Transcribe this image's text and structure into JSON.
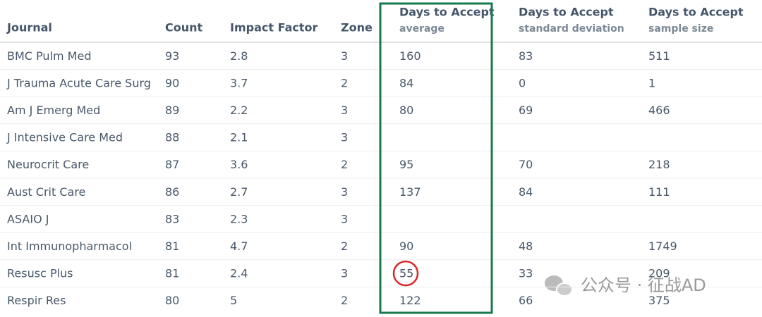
{
  "table": {
    "columns": [
      {
        "title": "Journal"
      },
      {
        "title": "Count"
      },
      {
        "title": "Impact Factor"
      },
      {
        "title": "Zone"
      },
      {
        "title": "Days to Accept",
        "subtitle": "average"
      },
      {
        "title": "Days to Accept",
        "subtitle": "standard deviation"
      },
      {
        "title": "Days to Accept",
        "subtitle": "sample size"
      }
    ],
    "rows": [
      [
        "BMC Pulm Med",
        "93",
        "2.8",
        "3",
        "160",
        "83",
        "511"
      ],
      [
        "J Trauma Acute Care Surg",
        "90",
        "3.7",
        "2",
        "84",
        "0",
        "1"
      ],
      [
        "Am J Emerg Med",
        "89",
        "2.2",
        "3",
        "80",
        "69",
        "466"
      ],
      [
        "J Intensive Care Med",
        "88",
        "2.1",
        "3",
        null,
        null,
        null
      ],
      [
        "Neurocrit Care",
        "87",
        "3.6",
        "2",
        "95",
        "70",
        "218"
      ],
      [
        "Aust Crit Care",
        "86",
        "2.7",
        "3",
        "137",
        "84",
        "111"
      ],
      [
        "ASAIO J",
        "83",
        "2.3",
        "3",
        null,
        null,
        null
      ],
      [
        "Int Immunopharmacol",
        "81",
        "4.7",
        "2",
        "90",
        "48",
        "1749"
      ],
      [
        "Resusc Plus",
        "81",
        "2.4",
        "3",
        "55",
        "33",
        "209"
      ],
      [
        "Respir Res",
        "80",
        "5",
        "2",
        "122",
        "66",
        "375"
      ]
    ]
  },
  "watermark": {
    "text": "公众号 · 征战AD"
  }
}
